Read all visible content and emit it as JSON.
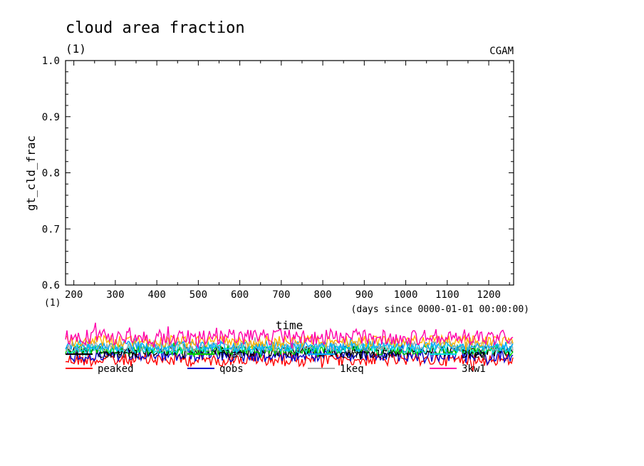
{
  "chart_data": {
    "type": "line",
    "title": "cloud area fraction",
    "subtitle": "(1)",
    "corner_label": "CGAM",
    "ylabel": "gt_cld_frac",
    "yunits": "(1)",
    "xlabel": "time",
    "xunits": "(days since 0000-01-01 00:00:00)",
    "xlim": [
      180,
      1260
    ],
    "ylim": [
      0.6,
      1.0
    ],
    "xticks": [
      200,
      300,
      400,
      500,
      600,
      700,
      800,
      900,
      1000,
      1100,
      1200
    ],
    "yticks": [
      0.6,
      0.7,
      0.8,
      0.9,
      1.0
    ],
    "grid": false,
    "legend_position": "below-plot",
    "series": [
      {
        "name": "control",
        "color": "#000000"
      },
      {
        "name": "flat",
        "color": "#00cc00"
      },
      {
        "name": "control5n",
        "color": "#00aaff"
      },
      {
        "name": "3keq",
        "color": "#00e0e0"
      },
      {
        "name": "peaked",
        "color": "#ff0000"
      },
      {
        "name": "qobs",
        "color": "#0000cc"
      },
      {
        "name": "1keq",
        "color": "#aaaaaa"
      },
      {
        "name": "3kw1",
        "color": "#ff00aa"
      }
    ],
    "noise_band_series_order": [
      "peaked",
      "qobs",
      "control",
      "flat",
      "3keq",
      "1keq",
      "control5n",
      "3kw1"
    ],
    "orange_band_color": "#ffb000"
  }
}
